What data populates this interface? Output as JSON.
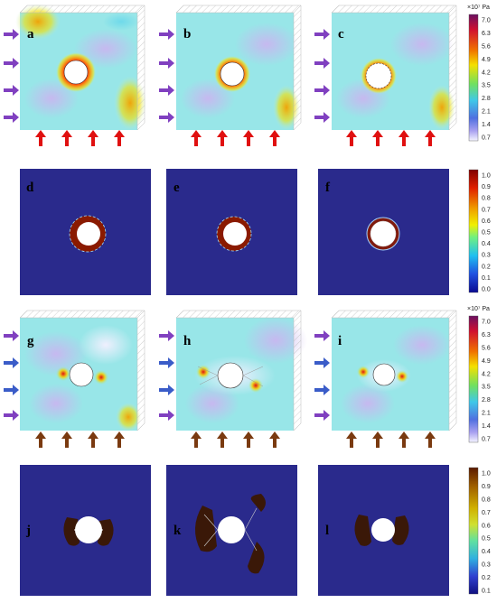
{
  "panel_labels": [
    "a",
    "b",
    "c",
    "d",
    "e",
    "f",
    "g",
    "h",
    "i",
    "j",
    "k",
    "l"
  ],
  "colorbars": [
    {
      "id": "cb1",
      "unit": "×10⁷ Pa",
      "ticks": [
        "7.0",
        "6.3",
        "5.6",
        "4.9",
        "4.2",
        "3.5",
        "2.8",
        "2.1",
        "1.4",
        "0.7"
      ],
      "scheme": "stress"
    },
    {
      "id": "cb2",
      "unit": "",
      "ticks": [
        "1.0",
        "0.9",
        "0.8",
        "0.7",
        "0.6",
        "0.5",
        "0.4",
        "0.3",
        "0.2",
        "0.1",
        "0.0"
      ],
      "scheme": "damage"
    },
    {
      "id": "cb3",
      "unit": "×10⁷ Pa",
      "ticks": [
        "7.0",
        "6.3",
        "5.6",
        "4.9",
        "4.2",
        "3.5",
        "2.8",
        "2.1",
        "1.4",
        "0.7"
      ],
      "scheme": "stress"
    },
    {
      "id": "cb4",
      "unit": "",
      "ticks": [
        "1.0",
        "0.9",
        "0.8",
        "0.7",
        "0.6",
        "0.5",
        "0.4",
        "0.3",
        "0.2",
        "0.1"
      ],
      "scheme": "damage2"
    }
  ],
  "colors": {
    "load_arrow_top": "#e01010",
    "side_arrow": "#8040c0",
    "side_arrow_blue": "#3a5cc8",
    "load_arrow_bottom": "#7a3a10",
    "damage_bg": "#2a2a8c"
  }
}
